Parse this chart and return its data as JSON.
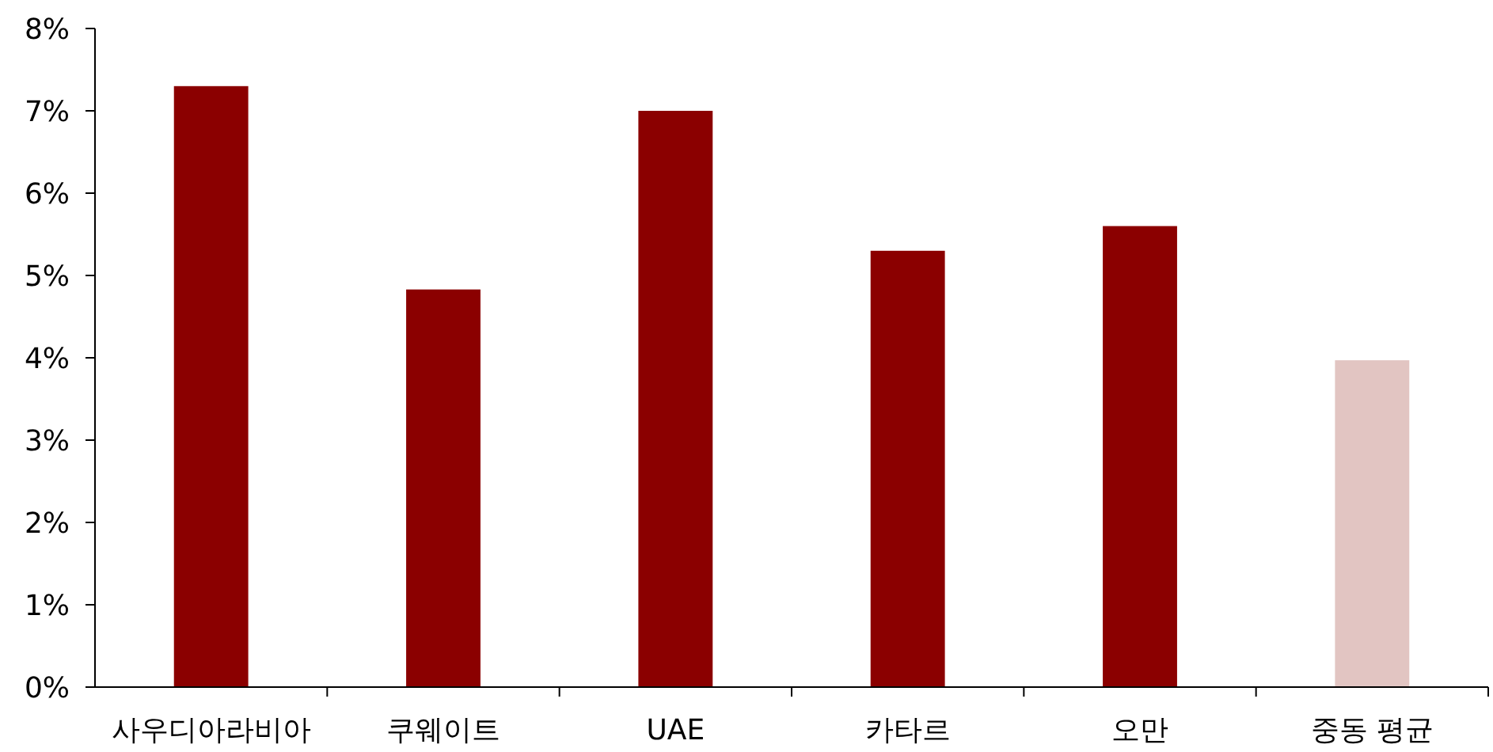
{
  "chart_data": {
    "type": "bar",
    "categories": [
      "사우디아라비아",
      "쿠웨이트",
      "UAE",
      "카타르",
      "오만",
      "중동 평균"
    ],
    "values": [
      7.3,
      4.83,
      7.0,
      5.3,
      5.6,
      3.97
    ],
    "colors": [
      "#8b0000",
      "#8b0000",
      "#8b0000",
      "#8b0000",
      "#8b0000",
      "#e2c5c2"
    ],
    "ylim": [
      0,
      8
    ],
    "yticks": [
      {
        "value": 0,
        "label": "0%"
      },
      {
        "value": 1,
        "label": "1%"
      },
      {
        "value": 2,
        "label": "2%"
      },
      {
        "value": 3,
        "label": "3%"
      },
      {
        "value": 4,
        "label": "4%"
      },
      {
        "value": 5,
        "label": "5%"
      },
      {
        "value": 6,
        "label": "6%"
      },
      {
        "value": 7,
        "label": "7%"
      },
      {
        "value": 8,
        "label": "8%"
      }
    ],
    "grid": false
  }
}
